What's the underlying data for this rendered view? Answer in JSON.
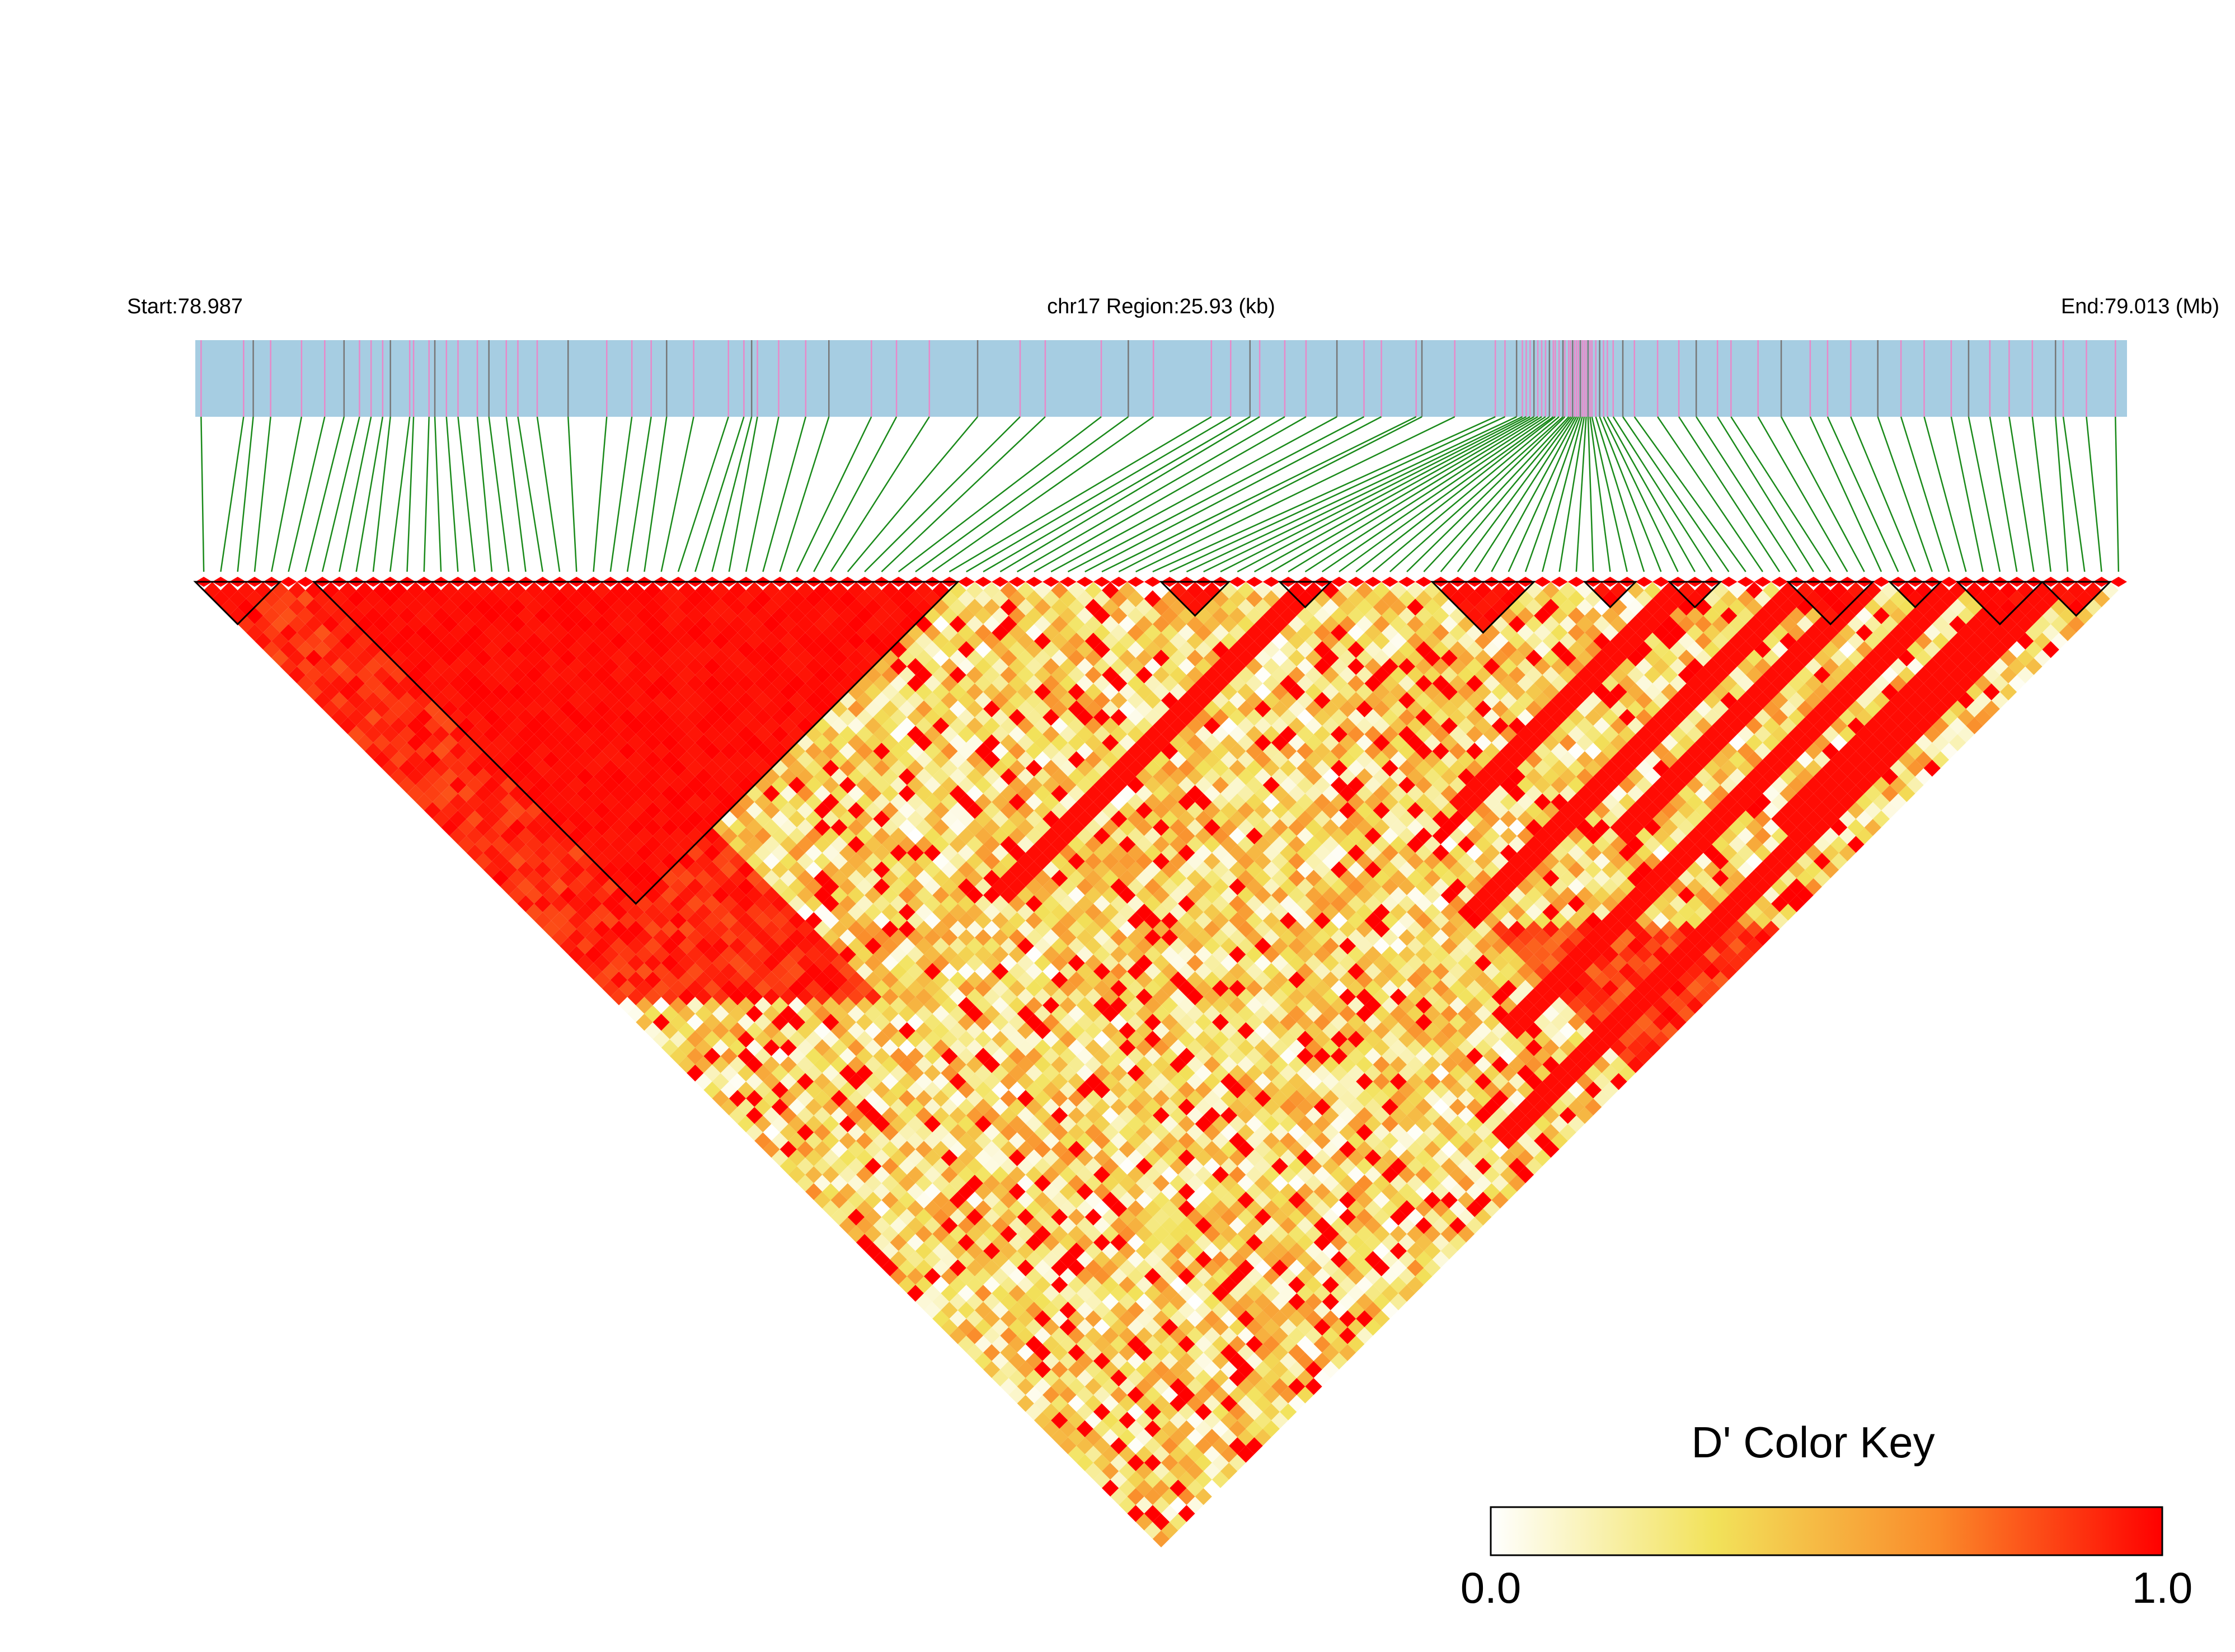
{
  "chart_data": {
    "type": "heatmap",
    "subtype": "linkage-disequilibrium-triangle",
    "header": {
      "start_label": "Start:78.987",
      "region_label": "chr17 Region:25.93 (kb)",
      "end_label": "End:79.013 (Mb)"
    },
    "region": {
      "chromosome": "chr17",
      "start_mb": 78.987,
      "end_mb": 79.013,
      "length_kb": 25.93
    },
    "snp_count": 114,
    "snp_positions_relative": [
      0.003,
      0.025,
      0.03,
      0.039,
      0.055,
      0.067,
      0.077,
      0.085,
      0.091,
      0.097,
      0.101,
      0.111,
      0.113,
      0.121,
      0.124,
      0.13,
      0.136,
      0.146,
      0.152,
      0.161,
      0.167,
      0.177,
      0.193,
      0.213,
      0.226,
      0.236,
      0.244,
      0.258,
      0.276,
      0.284,
      0.288,
      0.291,
      0.302,
      0.316,
      0.328,
      0.35,
      0.363,
      0.38,
      0.405,
      0.427,
      0.44,
      0.469,
      0.483,
      0.496,
      0.526,
      0.536,
      0.546,
      0.551,
      0.564,
      0.575,
      0.591,
      0.605,
      0.614,
      0.632,
      0.635,
      0.652,
      0.673,
      0.678,
      0.684,
      0.687,
      0.689,
      0.691,
      0.693,
      0.695,
      0.697,
      0.699,
      0.701,
      0.703,
      0.704,
      0.706,
      0.708,
      0.709,
      0.711,
      0.712,
      0.713,
      0.714,
      0.715,
      0.716,
      0.717,
      0.718,
      0.719,
      0.72,
      0.721,
      0.722,
      0.723,
      0.725,
      0.727,
      0.729,
      0.731,
      0.734,
      0.739,
      0.745,
      0.757,
      0.768,
      0.777,
      0.788,
      0.795,
      0.809,
      0.821,
      0.836,
      0.845,
      0.857,
      0.871,
      0.883,
      0.895,
      0.909,
      0.918,
      0.929,
      0.939,
      0.951,
      0.963,
      0.967,
      0.979,
      0.994
    ],
    "haplotype_blocks": [
      {
        "first_snp": 1,
        "last_snp": 5
      },
      {
        "first_snp": 8,
        "last_snp": 45
      },
      {
        "first_snp": 58,
        "last_snp": 61
      },
      {
        "first_snp": 65,
        "last_snp": 67
      },
      {
        "first_snp": 74,
        "last_snp": 79
      },
      {
        "first_snp": 83,
        "last_snp": 85
      },
      {
        "first_snp": 88,
        "last_snp": 90
      },
      {
        "first_snp": 95,
        "last_snp": 99
      },
      {
        "first_snp": 101,
        "last_snp": 103
      },
      {
        "first_snp": 105,
        "last_snp": 109
      },
      {
        "first_snp": 110,
        "last_snp": 113
      }
    ],
    "strong_ld_bands": [
      {
        "first_snp": 17,
        "last_snp": 19
      },
      {
        "first_snp": 36,
        "last_snp": 38
      },
      {
        "first_snp": 45,
        "last_snp": 110
      },
      {
        "first_snp": 57,
        "last_snp": 95
      },
      {
        "first_snp": 62,
        "last_snp": 88
      },
      {
        "first_snp": 70,
        "last_snp": 99
      },
      {
        "first_snp": 52,
        "last_snp": 104
      },
      {
        "first_snp": 30,
        "last_snp": 66
      },
      {
        "first_snp": 80,
        "last_snp": 108
      }
    ],
    "color_key": {
      "title": "D' Color Key",
      "min_label": "0.0",
      "max_label": "1.0",
      "min": 0.0,
      "max": 1.0,
      "colors": [
        "#ffffff",
        "#f2e25a",
        "#fa8a2a",
        "#ff0000"
      ]
    },
    "colors": {
      "gene_track": "#a6cde2",
      "snp_tick_pink": "#e889c9",
      "snp_tick_gray": "#777777",
      "connector": "#1a8a1a",
      "block_outline": "#000000",
      "strong_ld": "#ff0000"
    }
  }
}
